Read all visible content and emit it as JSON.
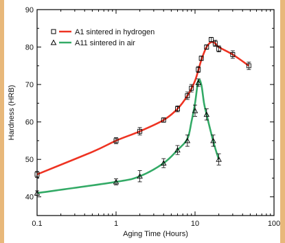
{
  "chart_data": {
    "type": "line",
    "title": "",
    "xlabel": "Aging Time (Hours)",
    "ylabel": "Hardness (HRB)",
    "xscale": "log",
    "xlim": [
      0.1,
      100
    ],
    "ylim": [
      35,
      90
    ],
    "xticks": [
      0.1,
      1,
      10,
      100
    ],
    "xtick_labels": [
      "0.1",
      "1",
      "10",
      "100"
    ],
    "yticks": [
      40,
      50,
      60,
      70,
      80,
      90
    ],
    "ytick_labels": [
      "40",
      "50",
      "60",
      "70",
      "80",
      "90"
    ],
    "legend_position": "top-left",
    "grid": false,
    "series": [
      {
        "name": "A1 sintered in hydrogen",
        "color": "#ee3322",
        "marker": "square",
        "points": [
          {
            "x": 0.1,
            "y": 46,
            "err": 0.8
          },
          {
            "x": 1,
            "y": 55,
            "err": 0.8
          },
          {
            "x": 2,
            "y": 57.5,
            "err": 1.0
          },
          {
            "x": 4,
            "y": 60.5,
            "err": 0.6
          },
          {
            "x": 6,
            "y": 63.5,
            "err": 0.8
          },
          {
            "x": 8,
            "y": 67,
            "err": 1.0
          },
          {
            "x": 9,
            "y": 69,
            "err": 1.0
          },
          {
            "x": 11,
            "y": 74,
            "err": 0.8
          },
          {
            "x": 12,
            "y": 77,
            "err": 0.6
          },
          {
            "x": 14,
            "y": 80,
            "err": 0.6
          },
          {
            "x": 16,
            "y": 82,
            "err": 0.6
          },
          {
            "x": 18,
            "y": 81,
            "err": 0.8
          },
          {
            "x": 20,
            "y": 79.5,
            "err": 0.8
          },
          {
            "x": 30,
            "y": 78,
            "err": 1.0
          },
          {
            "x": 48,
            "y": 75,
            "err": 1.0
          }
        ],
        "curve": [
          [
            0.1,
            46
          ],
          [
            0.5,
            52
          ],
          [
            1,
            55
          ],
          [
            2,
            57.5
          ],
          [
            4,
            60.5
          ],
          [
            6,
            63.5
          ],
          [
            8,
            67
          ],
          [
            10,
            71
          ],
          [
            12,
            76.5
          ],
          [
            14,
            80
          ],
          [
            16,
            81.3
          ],
          [
            18,
            81
          ],
          [
            20,
            80
          ],
          [
            30,
            78
          ],
          [
            48,
            75
          ]
        ]
      },
      {
        "name": "A11 sintered in air",
        "color": "#33aa66",
        "marker": "triangle",
        "points": [
          {
            "x": 0.1,
            "y": 41,
            "err": 0.6
          },
          {
            "x": 1,
            "y": 44,
            "err": 0.8
          },
          {
            "x": 2,
            "y": 45.5,
            "err": 1.5
          },
          {
            "x": 4,
            "y": 49,
            "err": 1.2
          },
          {
            "x": 6,
            "y": 52.5,
            "err": 1.2
          },
          {
            "x": 8,
            "y": 55,
            "err": 1.5
          },
          {
            "x": 10,
            "y": 63,
            "err": 1.5
          },
          {
            "x": 11,
            "y": 70.5,
            "err": 1.0
          },
          {
            "x": 14,
            "y": 62,
            "err": 1.5
          },
          {
            "x": 17,
            "y": 55,
            "err": 1.5
          },
          {
            "x": 20,
            "y": 50,
            "err": 1.5
          }
        ],
        "curve": [
          [
            0.1,
            41
          ],
          [
            1,
            44
          ],
          [
            2,
            45.5
          ],
          [
            4,
            49
          ],
          [
            6,
            52.5
          ],
          [
            8,
            55.5
          ],
          [
            9,
            60
          ],
          [
            10,
            65
          ],
          [
            11,
            71
          ],
          [
            12,
            70
          ],
          [
            13,
            65
          ],
          [
            14,
            62
          ],
          [
            16,
            57
          ],
          [
            18,
            53
          ],
          [
            20,
            50
          ]
        ]
      }
    ]
  }
}
